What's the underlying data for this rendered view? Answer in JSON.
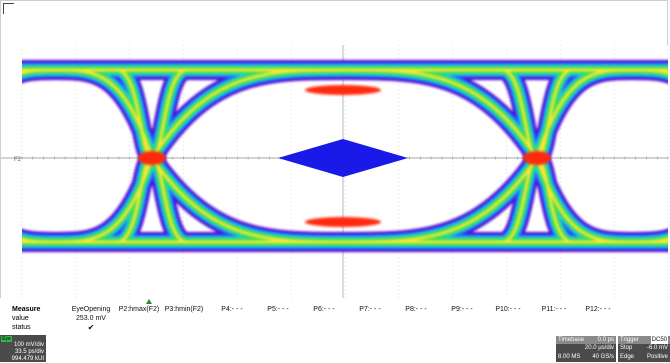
{
  "colors": {
    "background": "#ffffff",
    "eye_outer": "#5a10d0",
    "eye_inner_outer": "#1a6bff",
    "eye_mid": "#22c9d9",
    "eye_green": "#3be14a",
    "eye_yellow": "#f2e83a",
    "eye_hot": "#ff2a10",
    "mask": "#1a1ae8",
    "grid": "#bcbcbc"
  },
  "measure": {
    "header": "Measure",
    "value_label": "value",
    "status_label": "status",
    "columns": [
      {
        "name": "EyeOpening",
        "value": "253.0 mV",
        "status": "✔"
      },
      {
        "name": "P2:hmax(F2)",
        "value": "",
        "status": ""
      },
      {
        "name": "P3:hmin(F2)",
        "value": "",
        "status": ""
      },
      {
        "name": "P4:- - -",
        "value": "",
        "status": ""
      },
      {
        "name": "P5:- - -",
        "value": "",
        "status": ""
      },
      {
        "name": "P6:- - -",
        "value": "",
        "status": ""
      },
      {
        "name": "P7:- - -",
        "value": "",
        "status": ""
      },
      {
        "name": "P8:- - -",
        "value": "",
        "status": ""
      },
      {
        "name": "P9:- - -",
        "value": "",
        "status": ""
      },
      {
        "name": "P10:- - -",
        "value": "",
        "status": ""
      },
      {
        "name": "P11:- - -",
        "value": "",
        "status": ""
      },
      {
        "name": "P12:- - -",
        "value": "",
        "status": ""
      }
    ]
  },
  "trace": {
    "badge": "Eye",
    "vdiv": "100 mV/div",
    "hdiv": "33.5 ps/div",
    "count": "994.479 kUI"
  },
  "timebase": {
    "label": "Timebase",
    "delay": "0.0 ps",
    "tdiv": "20.0 µs/div",
    "samples": "8.00 MS",
    "rate": "40 GS/s"
  },
  "trigger": {
    "label": "Trigger",
    "mode": "DC50",
    "state": "Stop",
    "level": "-6.0 mV",
    "type": "Edge",
    "slope": "Positive"
  },
  "level_marker": "F2"
}
